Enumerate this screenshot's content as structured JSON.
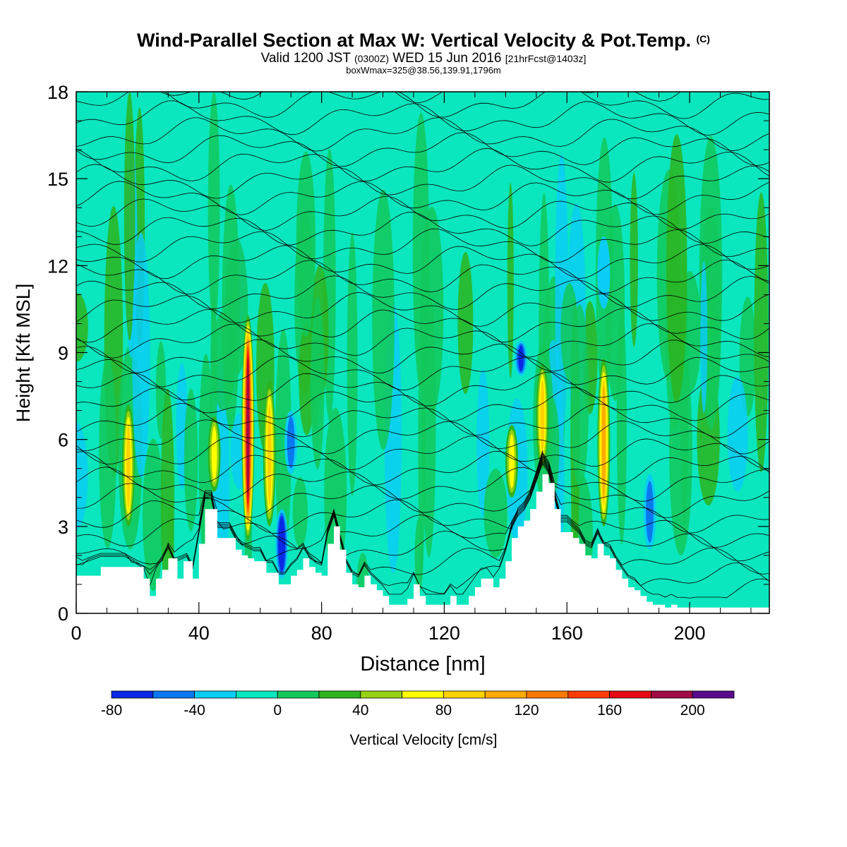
{
  "header": {
    "title": "Wind-Parallel Section at Max W: Vertical Velocity & Pot.Temp.",
    "title_mark": "(C)",
    "valid_prefix": "Valid 1200 JST",
    "valid_zulu": "(0300Z)",
    "valid_date": "WED 15 Jun 2016",
    "forecast": "[21hrFcst@1403z]",
    "box_info": "boxWmax=325@38.56,139.91,1796m"
  },
  "chart_data": {
    "type": "heatmap",
    "description_fields": "filled contours of vertical velocity with potential temperature isolines over terrain",
    "xlabel": "Distance [nm]",
    "ylabel": "Height [Kft MSL]",
    "xlim": [
      0,
      226
    ],
    "ylim": [
      0,
      18
    ],
    "xticks": [
      0,
      40,
      80,
      120,
      160,
      200
    ],
    "yticks": [
      0,
      3,
      6,
      9,
      12,
      15,
      18
    ],
    "xtick_labels": [
      "0",
      "40",
      "80",
      "120",
      "160",
      "200"
    ],
    "ytick_labels": [
      "0",
      "3",
      "6",
      "9",
      "12",
      "15",
      "18"
    ],
    "colorbar": {
      "label": "Vertical Velocity [cm/s]",
      "levels": [
        -80,
        -60,
        -40,
        -20,
        0,
        20,
        40,
        60,
        80,
        100,
        120,
        140,
        160,
        180,
        200,
        220
      ],
      "tick_values": [
        -80,
        -40,
        0,
        40,
        80,
        120,
        160,
        200
      ],
      "tick_labels": [
        "-80",
        "-40",
        "0",
        "40",
        "80",
        "120",
        "160",
        "200"
      ],
      "colors": [
        "#0a28e6",
        "#0a78f0",
        "#0acdf5",
        "#0ae6be",
        "#12c85a",
        "#2db41e",
        "#96d214",
        "#ffff00",
        "#ffd200",
        "#ffaa00",
        "#ff7800",
        "#ff3c00",
        "#e60a14",
        "#a00a46",
        "#5a0a8c"
      ]
    },
    "terrain_profile": {
      "x": [
        0,
        8,
        16,
        22,
        24,
        26,
        28,
        30,
        33,
        35,
        38,
        40,
        42,
        44,
        46,
        48,
        50,
        52,
        54,
        56,
        58,
        60,
        62,
        64,
        66,
        68,
        70,
        72,
        74,
        76,
        78,
        80,
        82,
        84,
        86,
        88,
        90,
        92,
        94,
        96,
        98,
        100,
        102,
        104,
        106,
        108,
        110,
        112,
        114,
        116,
        118,
        120,
        122,
        124,
        126,
        128,
        130,
        132,
        134,
        136,
        138,
        140,
        142,
        144,
        146,
        148,
        150,
        152,
        154,
        156,
        158,
        160,
        162,
        164,
        166,
        168,
        170,
        172,
        174,
        176,
        178,
        180,
        182,
        184,
        186,
        188,
        190,
        192,
        194,
        196,
        198,
        200,
        210,
        220,
        226
      ],
      "height_kft": [
        1.3,
        1.6,
        1.6,
        1.2,
        0.6,
        1.2,
        1.5,
        1.9,
        1.2,
        1.8,
        1.2,
        2.4,
        3.6,
        3.6,
        2.6,
        2.6,
        2.6,
        2.2,
        2.0,
        1.9,
        1.8,
        1.8,
        1.4,
        1.4,
        1.0,
        1.0,
        1.3,
        1.5,
        1.9,
        1.6,
        1.4,
        1.3,
        2.4,
        3.0,
        2.2,
        1.4,
        1.0,
        0.9,
        1.3,
        1.0,
        0.8,
        0.6,
        0.3,
        0.3,
        0.3,
        0.5,
        1.0,
        0.6,
        0.3,
        0.3,
        0.3,
        0.3,
        0.6,
        0.3,
        0.3,
        0.6,
        0.9,
        1.2,
        1.2,
        0.9,
        1.2,
        1.8,
        2.6,
        3.0,
        3.2,
        3.6,
        4.2,
        4.8,
        4.5,
        3.6,
        2.8,
        2.8,
        2.6,
        2.4,
        2.0,
        1.9,
        2.4,
        2.0,
        1.9,
        1.5,
        1.2,
        0.9,
        0.8,
        0.6,
        0.4,
        0.3,
        0.3,
        0.2,
        0.3,
        0.2,
        0.2,
        0.2,
        0.2,
        0.2,
        0.2
      ]
    },
    "updraft_cores": [
      {
        "x": 17,
        "z_bottom": 3.0,
        "z_top": 7.2,
        "peak_cms": 80
      },
      {
        "x": 45,
        "z_bottom": 4.2,
        "z_top": 6.8,
        "peak_cms": 60
      },
      {
        "x": 56,
        "z_bottom": 2.5,
        "z_top": 10.3,
        "peak_cms": 180
      },
      {
        "x": 63,
        "z_bottom": 3.0,
        "z_top": 8.0,
        "peak_cms": 80
      },
      {
        "x": 142,
        "z_bottom": 4.0,
        "z_top": 6.5,
        "peak_cms": 60
      },
      {
        "x": 152,
        "z_bottom": 5.0,
        "z_top": 8.6,
        "peak_cms": 80
      },
      {
        "x": 172,
        "z_bottom": 3.0,
        "z_top": 8.8,
        "peak_cms": 100
      }
    ],
    "downdraft_cores": [
      {
        "x": 67,
        "z_bottom": 1.2,
        "z_top": 3.6,
        "peak_cms": -80
      },
      {
        "x": 70,
        "z_bottom": 4.8,
        "z_top": 7.0,
        "peak_cms": -40
      },
      {
        "x": 145,
        "z_bottom": 8.2,
        "z_top": 9.4,
        "peak_cms": -60
      },
      {
        "x": 187,
        "z_bottom": 2.2,
        "z_top": 4.8,
        "peak_cms": -40
      },
      {
        "x": 172,
        "z_bottom": 10.5,
        "z_top": 13.0,
        "peak_cms": -20
      }
    ]
  }
}
